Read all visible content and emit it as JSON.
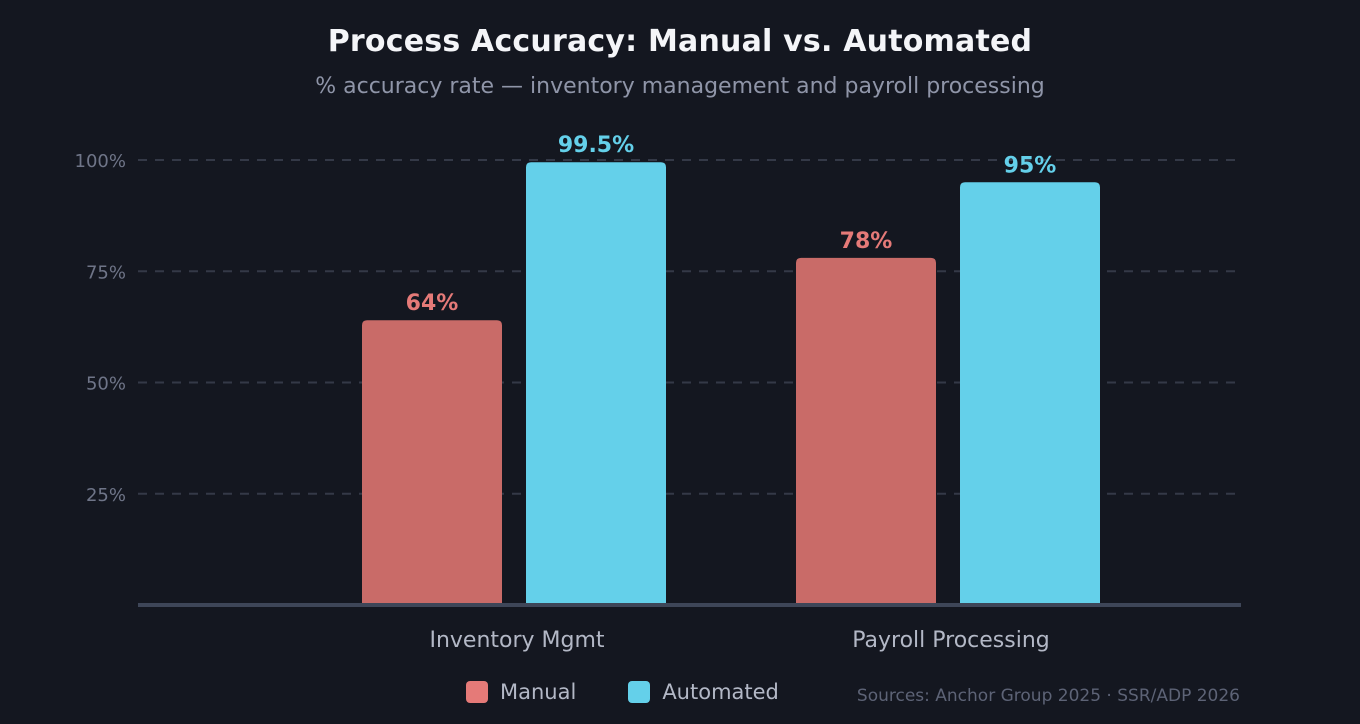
{
  "header": {
    "title": "Process Accuracy: Manual vs. Automated",
    "subtitle": "% accuracy rate — inventory management and payroll processing"
  },
  "legend": {
    "items": [
      {
        "label": "Manual",
        "color": "#c96b68"
      },
      {
        "label": "Automated",
        "color": "#64d0ea"
      }
    ]
  },
  "source": "Sources: Anchor Group 2025 · SSR/ADP 2026",
  "chart_data": {
    "type": "bar",
    "categories": [
      "Inventory Mgmt",
      "Payroll Processing"
    ],
    "series": [
      {
        "name": "Manual",
        "values": [
          64,
          78
        ],
        "labels": [
          "64%",
          "78%"
        ],
        "color": "#c96b68"
      },
      {
        "name": "Automated",
        "values": [
          99.5,
          95
        ],
        "labels": [
          "99.5%",
          "95%"
        ],
        "color": "#64d0ea"
      }
    ],
    "ylim": [
      0,
      100
    ],
    "yticks": [
      {
        "value": 25,
        "label": "25%"
      },
      {
        "value": 50,
        "label": "50%"
      },
      {
        "value": 75,
        "label": "75%"
      },
      {
        "value": 100,
        "label": "100%"
      }
    ],
    "grid": true,
    "legend_position": "bottom"
  }
}
